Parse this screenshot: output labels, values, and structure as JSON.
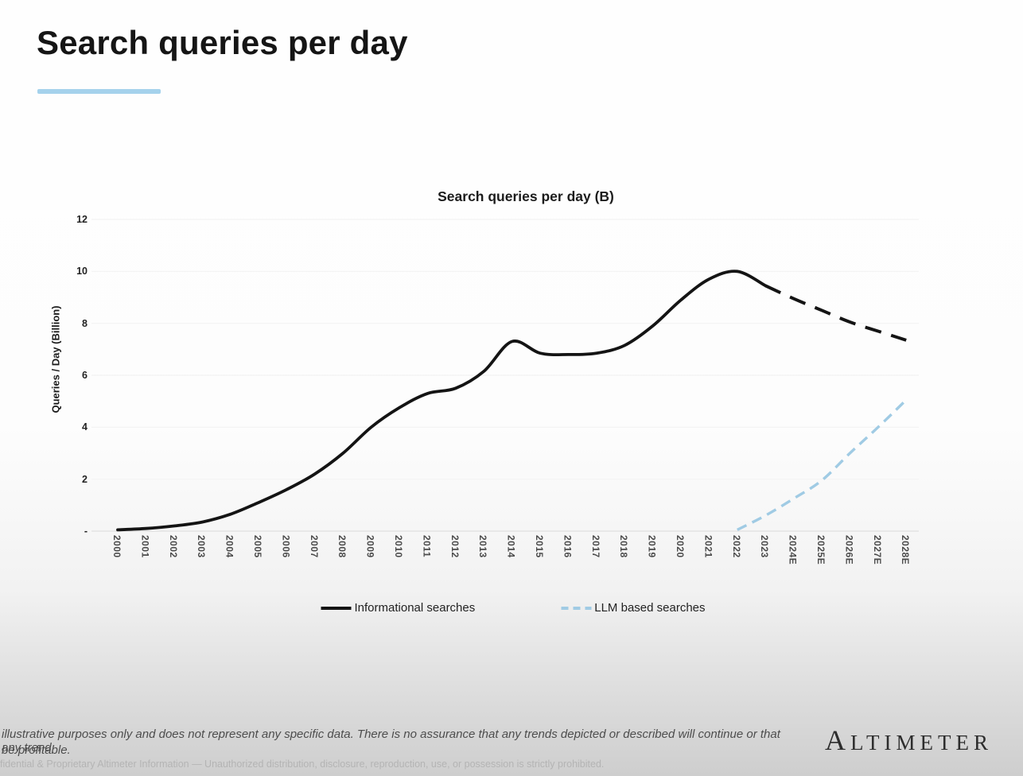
{
  "slide": {
    "title": "Search queries per day",
    "accent_color": "#a5d2ec"
  },
  "chart_data": {
    "type": "line",
    "title": "Search queries per day (B)",
    "ylabel": "Queries / Day (Billion)",
    "ylim": [
      0,
      12
    ],
    "yticks": [
      0,
      2,
      4,
      6,
      8,
      10,
      12
    ],
    "ytick_labels": [
      "-",
      "2",
      "4",
      "6",
      "8",
      "10",
      "12"
    ],
    "grid": "horizontal",
    "legend_position": "bottom",
    "categories": [
      "2000",
      "2001",
      "2002",
      "2003",
      "2004",
      "2005",
      "2006",
      "2007",
      "2008",
      "2009",
      "2010",
      "2011",
      "2012",
      "2013",
      "2014",
      "2015",
      "2016",
      "2017",
      "2018",
      "2019",
      "2020",
      "2021",
      "2022",
      "2023",
      "2024E",
      "2025E",
      "2026E",
      "2027E",
      "2028E"
    ],
    "series": [
      {
        "name": "Informational searches",
        "color": "#141414",
        "style": "solid-then-dashed",
        "dashed_from_index": 23,
        "values": [
          0.05,
          0.1,
          0.2,
          0.35,
          0.65,
          1.1,
          1.6,
          2.2,
          3.0,
          4.0,
          4.75,
          5.3,
          5.5,
          6.15,
          7.3,
          6.85,
          6.8,
          6.85,
          7.15,
          7.9,
          8.9,
          9.7,
          10.0,
          9.45,
          8.95,
          8.5,
          8.05,
          7.7,
          7.35
        ]
      },
      {
        "name": "LLM based searches",
        "color": "#a0cbe4",
        "style": "dashed",
        "values": [
          null,
          null,
          null,
          null,
          null,
          null,
          null,
          null,
          null,
          null,
          null,
          null,
          null,
          null,
          null,
          null,
          null,
          null,
          null,
          null,
          null,
          null,
          0.05,
          0.6,
          1.25,
          1.95,
          3.0,
          4.0,
          5.05
        ]
      }
    ]
  },
  "footer": {
    "disclaimer_line1": "illustrative purposes only and does not represent any specific data. There is no assurance that any trends depicted or described will continue or that any trend",
    "disclaimer_line2": "be profitable.",
    "confidential_line": "fidential & Proprietary Altimeter Information — Unauthorized distribution, disclosure, reproduction, use, or possession is strictly prohibited.",
    "logo_text": "ALTIMETER"
  }
}
